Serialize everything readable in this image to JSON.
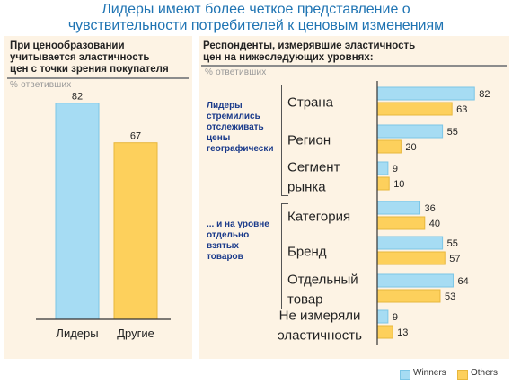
{
  "title_line1": "Лидеры имеют более четкое представление о",
  "title_line2": "чувствительности потребителей к ценовым изменениям",
  "colors": {
    "winners": "#a6dcf3",
    "others": "#fdd05c",
    "winners_edge": "#7cc6e6",
    "others_edge": "#e8b73c",
    "title": "#1f74b3"
  },
  "left_panel": {
    "title_l1": "При ценообразовании",
    "title_l2": "учитывается эластичность",
    "title_l3": "цен с точки зрения покупателя",
    "subtitle": "% ответивших"
  },
  "right_panel": {
    "title_l1": "Респонденты, измерявшие эластичность",
    "title_l2": "цен на нижеследующих уровнях:",
    "subtitle": "% ответивших",
    "group1_l1": "Лидеры",
    "group1_l2": "стремились",
    "group1_l3": "отслеживать",
    "group1_l4": "цены",
    "group1_l5": "географически",
    "group2_l1": "... и на уровне",
    "group2_l2": "отдельно",
    "group2_l3": "взятых",
    "group2_l4": "товаров"
  },
  "legend": {
    "winners": "Winners",
    "others": "Others"
  },
  "chart_data": [
    {
      "type": "bar",
      "categories": [
        "Лидеры",
        "Другие"
      ],
      "values": [
        82,
        67
      ],
      "title": "При ценообразовании учитывается эластичность цен с точки зрения покупателя",
      "ylabel": "% ответивших",
      "ylim": [
        0,
        100
      ]
    },
    {
      "type": "bar",
      "orientation": "horizontal",
      "title": "Респонденты, измерявшие эластичность цен на нижеследующих уровнях:",
      "xlabel": "% ответивших",
      "categories": [
        [
          "Страна"
        ],
        [
          "Регион"
        ],
        [
          "Сегмент",
          "рынка"
        ],
        [
          "Категория"
        ],
        [
          "Бренд"
        ],
        [
          "Отдельный",
          "товар"
        ],
        [
          "Не измеряли",
          "эластичность"
        ]
      ],
      "series": [
        {
          "name": "Winners",
          "values": [
            82,
            55,
            9,
            36,
            55,
            64,
            9
          ]
        },
        {
          "name": "Others",
          "values": [
            63,
            20,
            10,
            40,
            57,
            53,
            13
          ]
        }
      ],
      "xlim": [
        0,
        100
      ],
      "legend": "bottom-right"
    }
  ]
}
